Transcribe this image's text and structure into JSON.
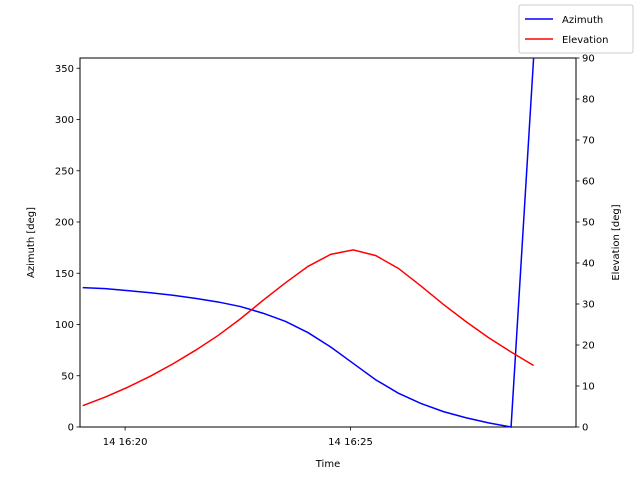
{
  "chart_data": {
    "type": "line",
    "xlabel": "Time",
    "ylabel_left": "Azimuth [deg]",
    "ylabel_right": "Elevation [deg]",
    "xlim": [
      -1.0,
      10.0
    ],
    "x_ticks": [
      {
        "value": 0,
        "label": "14 16:20"
      },
      {
        "value": 5,
        "label": "14 16:25"
      }
    ],
    "ylim_left": [
      0,
      360
    ],
    "yticks_left": [
      0,
      50,
      100,
      150,
      200,
      250,
      300,
      350
    ],
    "ylim_right": [
      0,
      90
    ],
    "yticks_right": [
      0,
      10,
      20,
      30,
      40,
      50,
      60,
      70,
      80,
      90
    ],
    "grid": false,
    "legend_position": "top-right",
    "series": [
      {
        "name": "Azimuth",
        "color": "#0000ff",
        "axis": "left",
        "x": [
          -0.94,
          -0.44,
          0.06,
          0.56,
          1.06,
          1.56,
          2.06,
          2.56,
          3.06,
          3.56,
          4.06,
          4.56,
          5.06,
          5.56,
          6.06,
          6.56,
          7.06,
          7.56,
          8.06,
          8.56,
          9.06
        ],
        "y": [
          136,
          135,
          133,
          131,
          128.5,
          125.5,
          122,
          117.5,
          111,
          103,
          92,
          78,
          62,
          46,
          33,
          23,
          15,
          9,
          4,
          0,
          360
        ]
      },
      {
        "name": "Elevation",
        "color": "#ff0000",
        "axis": "right",
        "x": [
          -0.94,
          -0.44,
          0.06,
          0.56,
          1.06,
          1.56,
          2.06,
          2.56,
          3.06,
          3.56,
          4.06,
          4.56,
          5.06,
          5.56,
          6.06,
          6.56,
          7.06,
          7.56,
          8.06,
          8.56,
          9.06
        ],
        "y": [
          5.2,
          7.3,
          9.7,
          12.4,
          15.4,
          18.7,
          22.3,
          26.4,
          30.9,
          35.2,
          39.2,
          42.1,
          43.2,
          41.8,
          38.7,
          34.4,
          29.9,
          25.7,
          21.8,
          18.3,
          15.0
        ]
      }
    ]
  }
}
